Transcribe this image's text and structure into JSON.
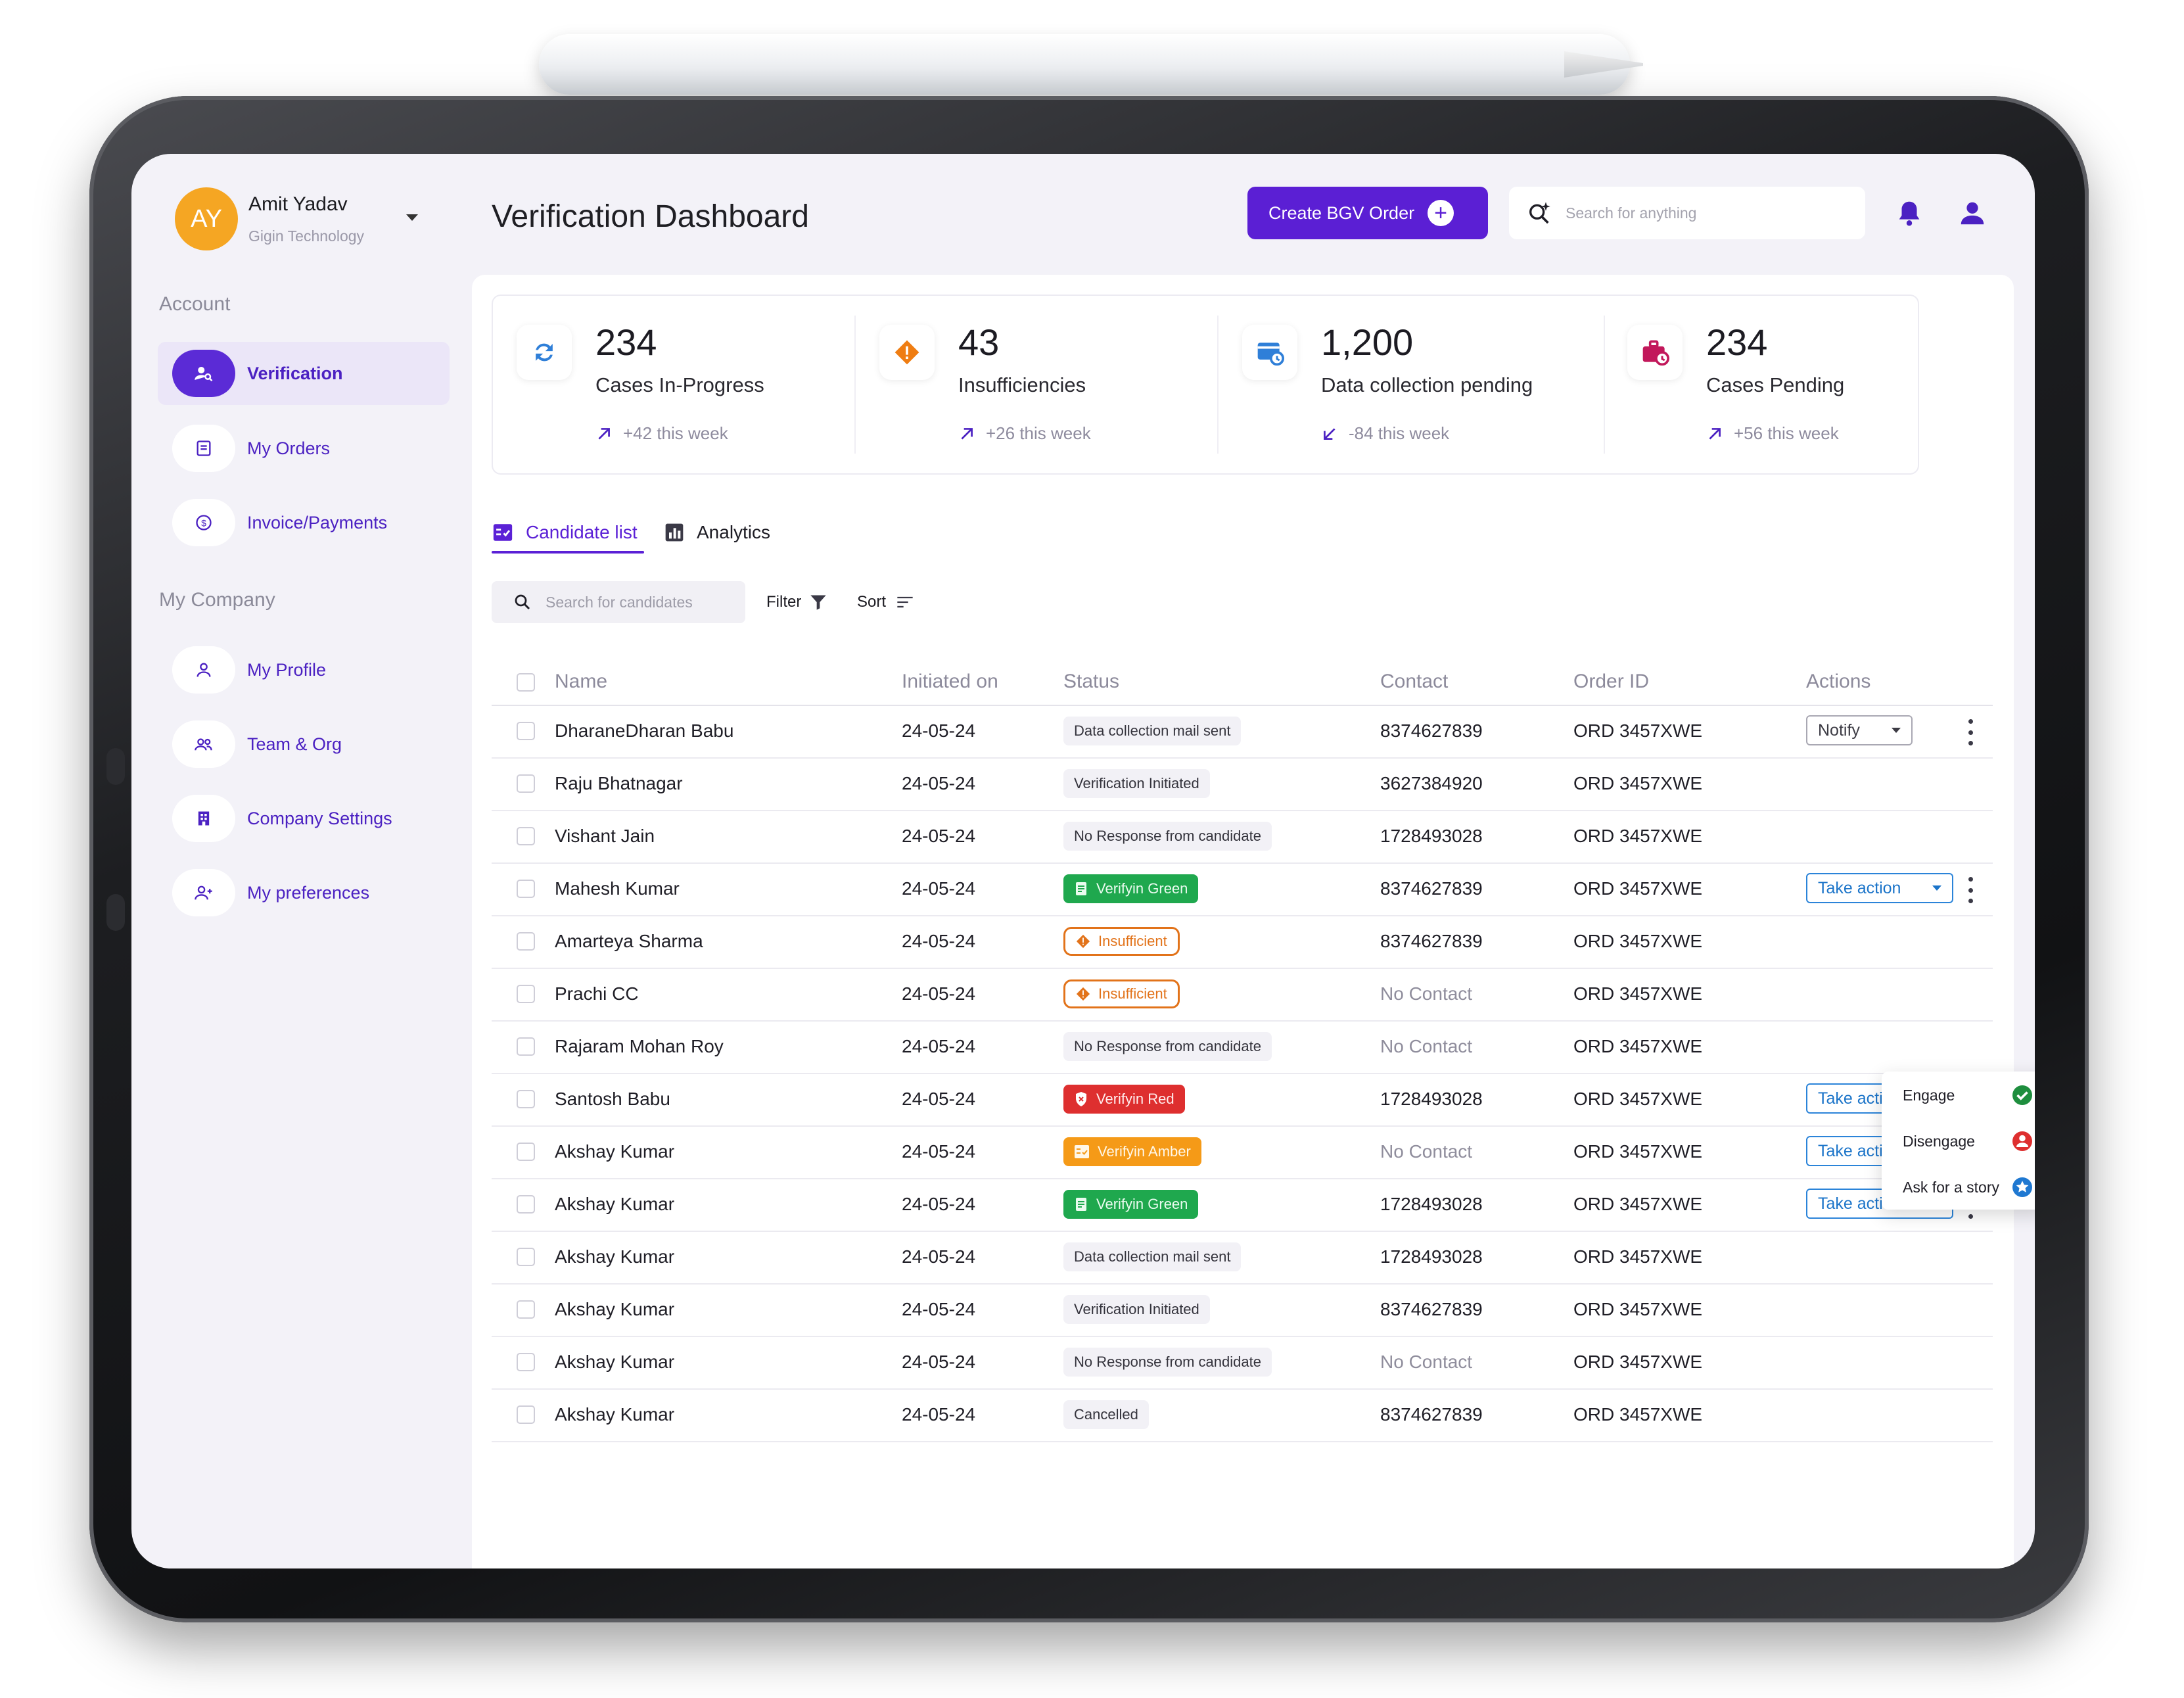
{
  "colors": {
    "brand": "#5b1fd4",
    "accent_blue": "#1b74c9",
    "green": "#1fa84e",
    "red": "#de2f2f",
    "amber": "#f59a17",
    "orange": "#e2731a"
  },
  "user": {
    "initials": "AY",
    "name": "Amit Yadav",
    "org": "Gigin Technology"
  },
  "sidebar": {
    "account_title": "Account",
    "account_items": [
      {
        "label": "Verification",
        "icon": "user-search-icon"
      },
      {
        "label": "My Orders",
        "icon": "orders-icon"
      },
      {
        "label": "Invoice/Payments",
        "icon": "payment-icon"
      }
    ],
    "company_title": "My Company",
    "company_items": [
      {
        "label": "My Profile",
        "icon": "profile-icon"
      },
      {
        "label": "Team & Org",
        "icon": "team-icon"
      },
      {
        "label": "Company Settings",
        "icon": "building-icon"
      },
      {
        "label": "My preferences",
        "icon": "user-add-icon"
      }
    ]
  },
  "header": {
    "title": "Verification Dashboard",
    "create_label": "Create BGV Order",
    "search_placeholder": "Search for anything"
  },
  "stats": [
    {
      "value": "234",
      "label": "Cases In-Progress",
      "trend": "+42 this week",
      "icon": "refresh-icon",
      "color": "#2f7fd8"
    },
    {
      "value": "43",
      "label": "Insufficiencies",
      "trend": "+26 this week",
      "icon": "warning-diamond-icon",
      "color": "#ef7d12"
    },
    {
      "value": "1,200",
      "label": "Data collection pending",
      "trend": "-84 this week",
      "icon": "form-clock-icon",
      "color": "#2f7fd8"
    },
    {
      "value": "234",
      "label": "Cases Pending",
      "trend": "+56 this week",
      "icon": "briefcase-clock-icon",
      "color": "#c2185b"
    }
  ],
  "tabs": {
    "candidate": "Candidate list",
    "analytics": "Analytics"
  },
  "tools": {
    "search_placeholder": "Search for candidates",
    "filter": "Filter",
    "sort": "Sort"
  },
  "table": {
    "headers": {
      "name": "Name",
      "initiated": "Initiated on",
      "status": "Status",
      "contact": "Contact",
      "order": "Order ID",
      "actions": "Actions"
    },
    "rows": [
      {
        "name": "DharaneDharan Babu",
        "initiated": "24-05-24",
        "status": "Data collection mail sent",
        "status_type": "plain",
        "contact": "8374627839",
        "order": "ORD 3457XWE",
        "action": "Notify"
      },
      {
        "name": "Raju Bhatnagar",
        "initiated": "24-05-24",
        "status": "Verification Initiated",
        "status_type": "plain",
        "contact": "3627384920",
        "order": "ORD 3457XWE",
        "action": ""
      },
      {
        "name": "Vishant Jain",
        "initiated": "24-05-24",
        "status": "No Response from candidate",
        "status_type": "plain",
        "contact": "1728493028",
        "order": "ORD 3457XWE",
        "action": ""
      },
      {
        "name": "Mahesh Kumar",
        "initiated": "24-05-24",
        "status": "Verifyin Green",
        "status_type": "green",
        "contact": "8374627839",
        "order": "ORD 3457XWE",
        "action": "Take action"
      },
      {
        "name": "Amarteya Sharma",
        "initiated": "24-05-24",
        "status": "Insufficient",
        "status_type": "insuf",
        "contact": "8374627839",
        "order": "ORD 3457XWE",
        "action": ""
      },
      {
        "name": "Prachi CC",
        "initiated": "24-05-24",
        "status": "Insufficient",
        "status_type": "insuf",
        "contact": "No Contact",
        "order": "ORD 3457XWE",
        "action": ""
      },
      {
        "name": "Rajaram Mohan Roy",
        "initiated": "24-05-24",
        "status": "No Response from candidate",
        "status_type": "plain",
        "contact": "No Contact",
        "order": "ORD 3457XWE",
        "action": ""
      },
      {
        "name": "Santosh Babu",
        "initiated": "24-05-24",
        "status": "Verifyin Red",
        "status_type": "red",
        "contact": "1728493028",
        "order": "ORD 3457XWE",
        "action": "Take action"
      },
      {
        "name": "Akshay Kumar",
        "initiated": "24-05-24",
        "status": "Verifyin Amber",
        "status_type": "amber",
        "contact": "No Contact",
        "order": "ORD 3457XWE",
        "action": "Take action"
      },
      {
        "name": "Akshay Kumar",
        "initiated": "24-05-24",
        "status": "Verifyin Green",
        "status_type": "green",
        "contact": "1728493028",
        "order": "ORD 3457XWE",
        "action": "Take action"
      },
      {
        "name": "Akshay Kumar",
        "initiated": "24-05-24",
        "status": "Data collection mail sent",
        "status_type": "plain",
        "contact": "1728493028",
        "order": "ORD 3457XWE",
        "action": ""
      },
      {
        "name": "Akshay Kumar",
        "initiated": "24-05-24",
        "status": "Verification Initiated",
        "status_type": "plain",
        "contact": "8374627839",
        "order": "ORD 3457XWE",
        "action": ""
      },
      {
        "name": "Akshay Kumar",
        "initiated": "24-05-24",
        "status": "No Response from candidate",
        "status_type": "plain",
        "contact": "No Contact",
        "order": "ORD 3457XWE",
        "action": ""
      },
      {
        "name": "Akshay Kumar",
        "initiated": "24-05-24",
        "status": "Cancelled",
        "status_type": "plain",
        "contact": "8374627839",
        "order": "ORD 3457XWE",
        "action": ""
      }
    ]
  },
  "dropdown": [
    {
      "label": "Engage",
      "icon": "check-circle-icon"
    },
    {
      "label": "Disengage",
      "icon": "user-remove-icon"
    },
    {
      "label": "Ask for a story",
      "icon": "star-badge-icon"
    }
  ]
}
